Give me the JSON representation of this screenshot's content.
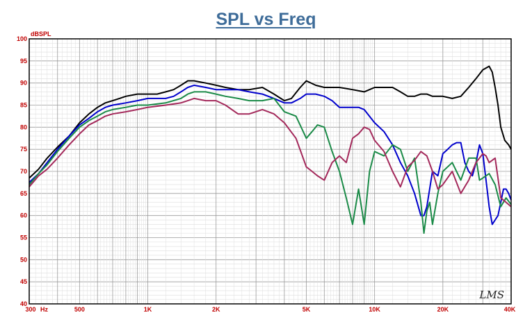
{
  "chart_data": {
    "type": "line",
    "title": "SPL vs Freq",
    "ylabel": "dBSPL",
    "xscale": "log",
    "xlim": [
      300,
      40000
    ],
    "ylim": [
      40,
      100
    ],
    "y_ticks": [
      "40",
      "45",
      "50",
      "55",
      "60",
      "65",
      "70",
      "75",
      "80",
      "85",
      "90",
      "95",
      "100"
    ],
    "x_ticks": [
      {
        "label": "300",
        "value": 300
      },
      {
        "label": "500",
        "value": 500
      },
      {
        "label": "1K",
        "value": 1000
      },
      {
        "label": "2K",
        "value": 2000
      },
      {
        "label": "5K",
        "value": 5000
      },
      {
        "label": "10K",
        "value": 10000
      },
      {
        "label": "20K",
        "value": 20000
      },
      {
        "label": "40K",
        "value": 40000
      }
    ],
    "x_unit": "Hz",
    "grid": true,
    "logo": "LMS",
    "series": [
      {
        "color": "#000000",
        "points": [
          [
            300,
            68.5
          ],
          [
            330,
            70.5
          ],
          [
            360,
            73
          ],
          [
            400,
            75.5
          ],
          [
            450,
            78
          ],
          [
            500,
            81
          ],
          [
            550,
            83
          ],
          [
            600,
            84.5
          ],
          [
            650,
            85.5
          ],
          [
            700,
            86
          ],
          [
            750,
            86.5
          ],
          [
            800,
            87
          ],
          [
            900,
            87.5
          ],
          [
            1000,
            87.5
          ],
          [
            1100,
            87.5
          ],
          [
            1200,
            88
          ],
          [
            1300,
            88.5
          ],
          [
            1400,
            89.5
          ],
          [
            1500,
            90.5
          ],
          [
            1600,
            90.5
          ],
          [
            1800,
            90
          ],
          [
            2000,
            89.5
          ],
          [
            2200,
            89
          ],
          [
            2500,
            88.5
          ],
          [
            2800,
            88.5
          ],
          [
            3200,
            89
          ],
          [
            3600,
            87.5
          ],
          [
            4000,
            86
          ],
          [
            4300,
            86.5
          ],
          [
            4700,
            89
          ],
          [
            5000,
            90.5
          ],
          [
            5500,
            89.5
          ],
          [
            6000,
            89
          ],
          [
            7000,
            89
          ],
          [
            8000,
            88.5
          ],
          [
            9000,
            88
          ],
          [
            10000,
            89
          ],
          [
            11000,
            89
          ],
          [
            12000,
            89
          ],
          [
            13000,
            88
          ],
          [
            14000,
            87
          ],
          [
            15000,
            87
          ],
          [
            16000,
            87.5
          ],
          [
            17000,
            87.5
          ],
          [
            18000,
            87
          ],
          [
            20000,
            87
          ],
          [
            22000,
            86.5
          ],
          [
            24000,
            87
          ],
          [
            26000,
            89
          ],
          [
            28000,
            91
          ],
          [
            30000,
            93
          ],
          [
            32000,
            93.8
          ],
          [
            33000,
            92.5
          ],
          [
            34000,
            89
          ],
          [
            35000,
            85
          ],
          [
            36000,
            80
          ],
          [
            37500,
            77
          ],
          [
            39000,
            76
          ],
          [
            40000,
            75
          ]
        ]
      },
      {
        "color": "#0000cc",
        "points": [
          [
            300,
            67.5
          ],
          [
            330,
            69.5
          ],
          [
            360,
            72
          ],
          [
            400,
            75
          ],
          [
            450,
            78
          ],
          [
            500,
            80.5
          ],
          [
            550,
            82
          ],
          [
            600,
            83.5
          ],
          [
            650,
            84.5
          ],
          [
            700,
            85
          ],
          [
            800,
            85.5
          ],
          [
            900,
            86
          ],
          [
            1000,
            86.5
          ],
          [
            1100,
            86.5
          ],
          [
            1200,
            86.5
          ],
          [
            1300,
            87
          ],
          [
            1400,
            88
          ],
          [
            1500,
            89
          ],
          [
            1600,
            89.5
          ],
          [
            1800,
            89
          ],
          [
            2000,
            88.5
          ],
          [
            2500,
            88.5
          ],
          [
            2800,
            88
          ],
          [
            3200,
            87.5
          ],
          [
            3600,
            86.5
          ],
          [
            4000,
            85.5
          ],
          [
            4300,
            85.5
          ],
          [
            4700,
            86.5
          ],
          [
            5000,
            87.5
          ],
          [
            5500,
            87.5
          ],
          [
            6000,
            87
          ],
          [
            6500,
            86
          ],
          [
            7000,
            84.5
          ],
          [
            8000,
            84.5
          ],
          [
            8500,
            84.5
          ],
          [
            9000,
            84
          ],
          [
            10000,
            81
          ],
          [
            11000,
            79
          ],
          [
            12000,
            76
          ],
          [
            13000,
            72
          ],
          [
            14000,
            69
          ],
          [
            15000,
            65
          ],
          [
            16000,
            60
          ],
          [
            16500,
            60
          ],
          [
            17000,
            62
          ],
          [
            18000,
            70
          ],
          [
            19000,
            69
          ],
          [
            20000,
            74
          ],
          [
            21000,
            75
          ],
          [
            22000,
            76
          ],
          [
            23000,
            76.5
          ],
          [
            24000,
            76.5
          ],
          [
            25000,
            72
          ],
          [
            26000,
            70
          ],
          [
            27000,
            69
          ],
          [
            28000,
            72
          ],
          [
            29000,
            76
          ],
          [
            30000,
            74
          ],
          [
            31000,
            68
          ],
          [
            32000,
            62
          ],
          [
            33000,
            58
          ],
          [
            34000,
            59
          ],
          [
            35000,
            60
          ],
          [
            36000,
            63
          ],
          [
            37000,
            66
          ],
          [
            38000,
            66
          ],
          [
            39000,
            65
          ],
          [
            40000,
            63.5
          ]
        ]
      },
      {
        "color": "#1a8a47",
        "points": [
          [
            300,
            67
          ],
          [
            330,
            69.5
          ],
          [
            360,
            71.5
          ],
          [
            400,
            74.5
          ],
          [
            450,
            77.5
          ],
          [
            500,
            80
          ],
          [
            550,
            81.5
          ],
          [
            600,
            82.5
          ],
          [
            650,
            83.5
          ],
          [
            700,
            84
          ],
          [
            800,
            84.5
          ],
          [
            900,
            85
          ],
          [
            1000,
            85
          ],
          [
            1200,
            85.5
          ],
          [
            1400,
            86.5
          ],
          [
            1500,
            87.5
          ],
          [
            1600,
            88
          ],
          [
            1800,
            88
          ],
          [
            2000,
            87.5
          ],
          [
            2200,
            87
          ],
          [
            2500,
            86.5
          ],
          [
            2800,
            86
          ],
          [
            3200,
            86
          ],
          [
            3600,
            86.5
          ],
          [
            4000,
            83.5
          ],
          [
            4500,
            82.5
          ],
          [
            5000,
            77.5
          ],
          [
            5300,
            79
          ],
          [
            5600,
            80.5
          ],
          [
            6000,
            80
          ],
          [
            6500,
            74.5
          ],
          [
            7000,
            70
          ],
          [
            7500,
            64
          ],
          [
            8000,
            58
          ],
          [
            8500,
            66
          ],
          [
            9000,
            58
          ],
          [
            9500,
            70
          ],
          [
            10000,
            74.5
          ],
          [
            11000,
            73.5
          ],
          [
            12000,
            76
          ],
          [
            13000,
            75
          ],
          [
            14000,
            70
          ],
          [
            15000,
            73
          ],
          [
            16000,
            63
          ],
          [
            16500,
            56
          ],
          [
            17000,
            61
          ],
          [
            17500,
            63
          ],
          [
            18000,
            58
          ],
          [
            19000,
            65
          ],
          [
            20000,
            70
          ],
          [
            22000,
            72
          ],
          [
            24000,
            68
          ],
          [
            26000,
            73
          ],
          [
            28000,
            73
          ],
          [
            29000,
            68
          ],
          [
            30000,
            68.5
          ],
          [
            32000,
            69.5
          ],
          [
            34000,
            67
          ],
          [
            36000,
            62
          ],
          [
            38000,
            64
          ],
          [
            40000,
            62.5
          ]
        ]
      },
      {
        "color": "#a3285a",
        "points": [
          [
            300,
            66.5
          ],
          [
            330,
            69
          ],
          [
            360,
            70.5
          ],
          [
            400,
            73
          ],
          [
            450,
            76
          ],
          [
            500,
            78.5
          ],
          [
            550,
            80.5
          ],
          [
            600,
            81.5
          ],
          [
            650,
            82.5
          ],
          [
            700,
            83
          ],
          [
            800,
            83.5
          ],
          [
            900,
            84
          ],
          [
            1000,
            84.5
          ],
          [
            1200,
            85
          ],
          [
            1400,
            85.5
          ],
          [
            1500,
            86
          ],
          [
            1600,
            86.5
          ],
          [
            1800,
            86
          ],
          [
            2000,
            86
          ],
          [
            2200,
            85
          ],
          [
            2500,
            83
          ],
          [
            2800,
            83
          ],
          [
            3200,
            84
          ],
          [
            3600,
            83
          ],
          [
            4000,
            81
          ],
          [
            4500,
            77.5
          ],
          [
            5000,
            71
          ],
          [
            5300,
            70
          ],
          [
            5600,
            69
          ],
          [
            6000,
            68
          ],
          [
            6500,
            72
          ],
          [
            7000,
            73.5
          ],
          [
            7500,
            72
          ],
          [
            8000,
            77.5
          ],
          [
            8500,
            78.5
          ],
          [
            9000,
            80
          ],
          [
            9500,
            79.5
          ],
          [
            10000,
            77
          ],
          [
            11000,
            74.5
          ],
          [
            12000,
            70
          ],
          [
            13000,
            66.5
          ],
          [
            14000,
            71
          ],
          [
            15000,
            72.5
          ],
          [
            16000,
            74.5
          ],
          [
            17000,
            73.5
          ],
          [
            18000,
            70
          ],
          [
            19000,
            66
          ],
          [
            20000,
            67
          ],
          [
            22000,
            70
          ],
          [
            24000,
            65
          ],
          [
            26000,
            68
          ],
          [
            28000,
            72
          ],
          [
            30000,
            74
          ],
          [
            31000,
            73.5
          ],
          [
            32000,
            72
          ],
          [
            34000,
            73
          ],
          [
            36000,
            64
          ],
          [
            38000,
            63
          ],
          [
            40000,
            62
          ]
        ]
      }
    ]
  }
}
